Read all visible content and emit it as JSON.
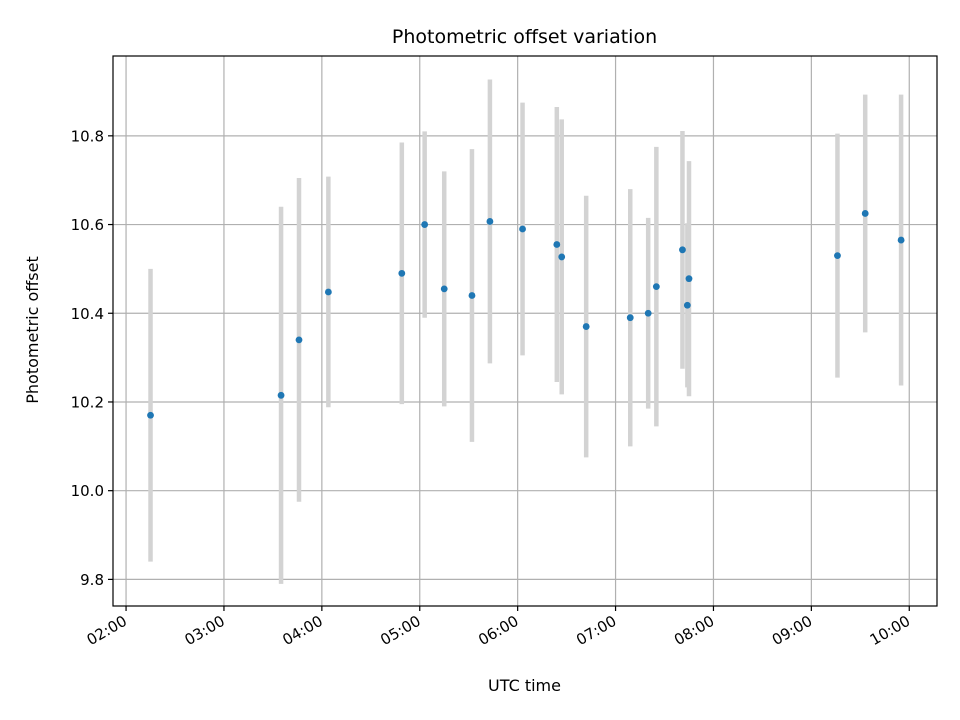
{
  "chart_data": {
    "type": "scatter",
    "title": "Photometric offset variation",
    "xlabel": "UTC time",
    "ylabel": "Photometric offset",
    "x_tick_labels": [
      "02:00",
      "03:00",
      "04:00",
      "05:00",
      "06:00",
      "07:00",
      "08:00",
      "09:00",
      "10:00"
    ],
    "y_tick_labels": [
      "9.8",
      "10.0",
      "10.2",
      "10.4",
      "10.6",
      "10.8"
    ],
    "xlim": [
      "01:52",
      "10:17"
    ],
    "ylim": [
      9.74,
      10.98
    ],
    "grid": true,
    "series": [
      {
        "marker_color": "#1f77b4",
        "errorbar_color": "#d3d3d3",
        "points": [
          {
            "x": "02:15",
            "y": 10.17,
            "err": 0.33
          },
          {
            "x": "03:35",
            "y": 10.215,
            "err": 0.425
          },
          {
            "x": "03:46",
            "y": 10.34,
            "err": 0.365
          },
          {
            "x": "04:04",
            "y": 10.448,
            "err": 0.26
          },
          {
            "x": "04:49",
            "y": 10.49,
            "err": 0.295
          },
          {
            "x": "05:03",
            "y": 10.6,
            "err": 0.21
          },
          {
            "x": "05:15",
            "y": 10.455,
            "err": 0.265
          },
          {
            "x": "05:32",
            "y": 10.44,
            "err": 0.33
          },
          {
            "x": "05:43",
            "y": 10.607,
            "err": 0.32
          },
          {
            "x": "06:03",
            "y": 10.59,
            "err": 0.285
          },
          {
            "x": "06:24",
            "y": 10.555,
            "err": 0.31
          },
          {
            "x": "06:27",
            "y": 10.527,
            "err": 0.31
          },
          {
            "x": "06:42",
            "y": 10.37,
            "err": 0.295
          },
          {
            "x": "07:09",
            "y": 10.39,
            "err": 0.29
          },
          {
            "x": "07:20",
            "y": 10.4,
            "err": 0.215
          },
          {
            "x": "07:25",
            "y": 10.46,
            "err": 0.315
          },
          {
            "x": "07:41",
            "y": 10.543,
            "err": 0.268
          },
          {
            "x": "07:44",
            "y": 10.418,
            "err": 0.185
          },
          {
            "x": "07:45",
            "y": 10.478,
            "err": 0.265
          },
          {
            "x": "09:16",
            "y": 10.53,
            "err": 0.275
          },
          {
            "x": "09:33",
            "y": 10.625,
            "err": 0.268
          },
          {
            "x": "09:55",
            "y": 10.565,
            "err": 0.328
          }
        ]
      }
    ]
  }
}
